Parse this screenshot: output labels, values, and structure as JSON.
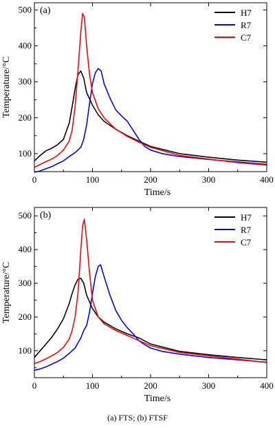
{
  "caption": "(a) FTS; (b) FTSF",
  "chart_data": [
    {
      "type": "line",
      "panel_label": "(a)",
      "xlabel": "Time/s",
      "ylabel": "Temperature/°C",
      "xlim": [
        0,
        400
      ],
      "ylim": [
        50,
        520
      ],
      "xticks": [
        0,
        100,
        200,
        300,
        400
      ],
      "yticks": [
        100,
        200,
        300,
        400,
        500
      ],
      "grid": false,
      "legend_position": "top-right",
      "series": [
        {
          "name": "H7",
          "color": "#000000",
          "x": [
            0,
            10,
            20,
            30,
            40,
            50,
            60,
            65,
            70,
            75,
            80,
            85,
            90,
            100,
            110,
            120,
            140,
            160,
            180,
            200,
            250,
            300,
            350,
            400
          ],
          "y": [
            80,
            95,
            108,
            115,
            125,
            140,
            185,
            230,
            280,
            320,
            330,
            310,
            270,
            235,
            208,
            190,
            168,
            150,
            135,
            120,
            100,
            90,
            82,
            76
          ]
        },
        {
          "name": "R7",
          "color": "#0000ff",
          "x": [
            0,
            10,
            20,
            30,
            40,
            50,
            60,
            70,
            80,
            85,
            90,
            95,
            100,
            105,
            110,
            115,
            120,
            130,
            140,
            150,
            160,
            170,
            180,
            190,
            200,
            220,
            250,
            300,
            350,
            400
          ],
          "y": [
            48,
            52,
            58,
            64,
            72,
            80,
            92,
            103,
            118,
            140,
            180,
            240,
            295,
            325,
            337,
            330,
            295,
            255,
            222,
            205,
            190,
            165,
            140,
            120,
            110,
            100,
            92,
            84,
            77,
            70
          ]
        },
        {
          "name": "C7",
          "color": "#ff0000",
          "x": [
            0,
            10,
            20,
            30,
            40,
            50,
            60,
            65,
            70,
            75,
            80,
            83,
            86,
            90,
            95,
            100,
            110,
            120,
            140,
            160,
            180,
            200,
            250,
            300,
            350,
            400
          ],
          "y": [
            62,
            70,
            78,
            85,
            95,
            110,
            135,
            165,
            230,
            330,
            440,
            490,
            480,
            400,
            320,
            270,
            225,
            200,
            168,
            148,
            132,
            118,
            95,
            85,
            75,
            68
          ]
        }
      ]
    },
    {
      "type": "line",
      "panel_label": "(b)",
      "xlabel": "Time/s",
      "ylabel": "Temperature/°C",
      "xlim": [
        0,
        400
      ],
      "ylim": [
        20,
        525
      ],
      "xticks": [
        0,
        100,
        200,
        300,
        400
      ],
      "yticks": [
        100,
        200,
        300,
        400,
        500
      ],
      "grid": false,
      "legend_position": "top-right",
      "series": [
        {
          "name": "H7",
          "color": "#000000",
          "x": [
            0,
            10,
            20,
            30,
            40,
            50,
            60,
            65,
            70,
            75,
            80,
            85,
            90,
            100,
            110,
            120,
            140,
            160,
            180,
            200,
            250,
            300,
            350,
            400
          ],
          "y": [
            80,
            100,
            120,
            140,
            165,
            195,
            240,
            270,
            295,
            312,
            315,
            300,
            265,
            225,
            200,
            185,
            165,
            150,
            138,
            120,
            98,
            88,
            80,
            73
          ]
        },
        {
          "name": "R7",
          "color": "#0000ff",
          "x": [
            0,
            10,
            20,
            30,
            40,
            50,
            60,
            70,
            80,
            85,
            90,
            95,
            100,
            105,
            110,
            114,
            120,
            130,
            140,
            150,
            160,
            170,
            180,
            190,
            200,
            220,
            250,
            300,
            350,
            400
          ],
          "y": [
            42,
            46,
            52,
            60,
            68,
            78,
            92,
            108,
            138,
            160,
            175,
            215,
            270,
            320,
            350,
            355,
            320,
            265,
            220,
            190,
            168,
            150,
            130,
            118,
            108,
            98,
            90,
            80,
            73,
            66
          ]
        },
        {
          "name": "C7",
          "color": "#ff0000",
          "x": [
            0,
            10,
            20,
            30,
            40,
            50,
            60,
            65,
            70,
            75,
            80,
            83,
            86,
            90,
            95,
            100,
            110,
            120,
            140,
            160,
            180,
            200,
            250,
            300,
            350,
            400
          ],
          "y": [
            62,
            68,
            76,
            85,
            95,
            110,
            135,
            160,
            200,
            270,
            400,
            470,
            490,
            430,
            330,
            250,
            200,
            180,
            160,
            145,
            130,
            115,
            95,
            85,
            75,
            65
          ]
        }
      ]
    }
  ]
}
